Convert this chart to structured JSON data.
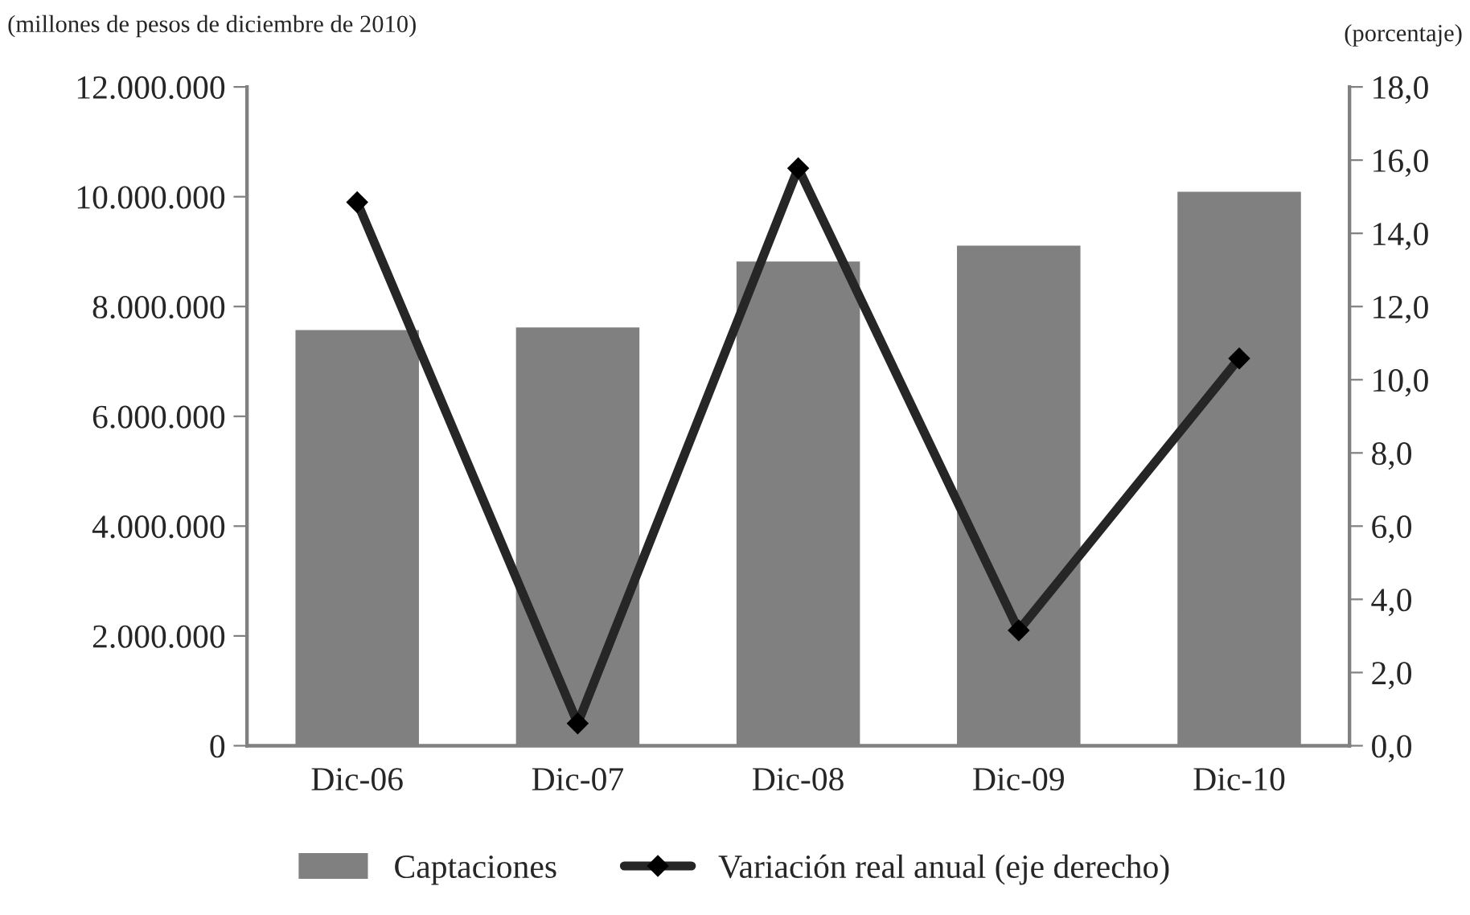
{
  "chart_data": {
    "type": "bar",
    "ylabel": "(millones de pesos de diciembre de 2010)",
    "y2label": "(porcentaje)",
    "categories": [
      "Dic-06",
      "Dic-07",
      "Dic-08",
      "Dic-09",
      "Dic-10"
    ],
    "series": [
      {
        "name": "Captaciones",
        "color": "#808080",
        "values": [
          7590000,
          7640000,
          8840000,
          9130000,
          10110000
        ]
      },
      {
        "name": "Variación real anual (eje derecho)",
        "type": "line",
        "axis": "y2",
        "color": "#262626",
        "marker": "diamond",
        "values": [
          14.85,
          0.61,
          15.78,
          3.15,
          10.58
        ]
      }
    ],
    "ylim": [
      0,
      12000000
    ],
    "yticks": [
      {
        "value": 0,
        "label": "0"
      },
      {
        "value": 2000000,
        "label": "2.000.000"
      },
      {
        "value": 4000000,
        "label": "4.000.000"
      },
      {
        "value": 6000000,
        "label": "6.000.000"
      },
      {
        "value": 8000000,
        "label": "8.000.000"
      },
      {
        "value": 10000000,
        "label": "10.000.000"
      },
      {
        "value": 12000000,
        "label": "12.000.000"
      }
    ],
    "y2lim": [
      0,
      18
    ],
    "y2ticks": [
      {
        "value": 0,
        "label": "0,0"
      },
      {
        "value": 2,
        "label": "2,0"
      },
      {
        "value": 4,
        "label": "4,0"
      },
      {
        "value": 6,
        "label": "6,0"
      },
      {
        "value": 8,
        "label": "8,0"
      },
      {
        "value": 10,
        "label": "10,0"
      },
      {
        "value": 12,
        "label": "12,0"
      },
      {
        "value": 14,
        "label": "14,0"
      },
      {
        "value": 16,
        "label": "16,0"
      },
      {
        "value": 18,
        "label": "18,0"
      }
    ],
    "grid": false,
    "legend": "bottom"
  }
}
